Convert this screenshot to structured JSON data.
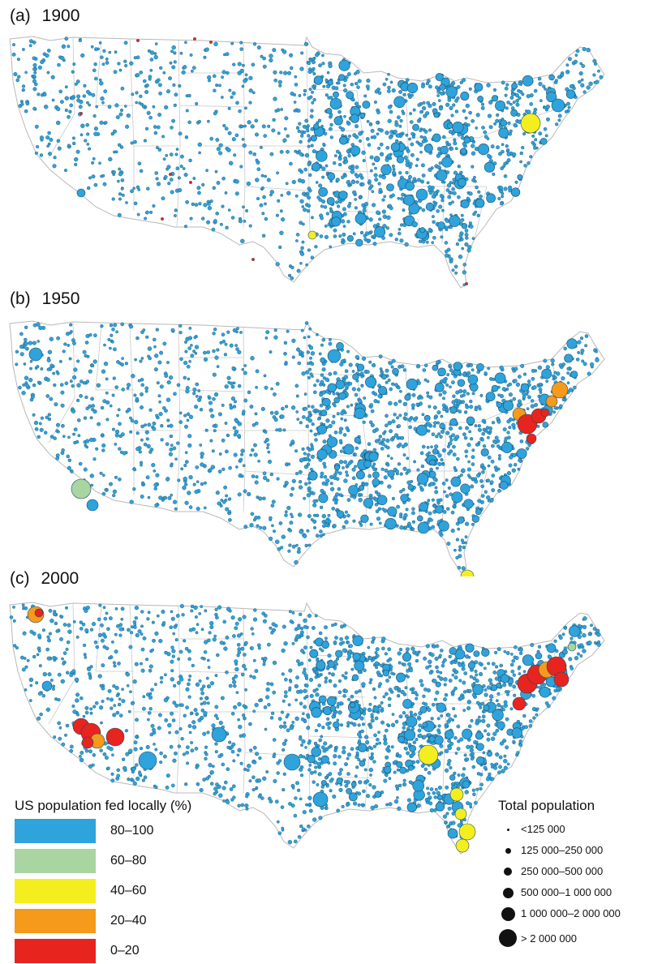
{
  "panels": [
    {
      "label": "(a)",
      "year": "1900"
    },
    {
      "label": "(b)",
      "year": "1950"
    },
    {
      "label": "(c)",
      "year": "2000"
    }
  ],
  "colors": {
    "c80_100": "#2ea3dc",
    "c60_80": "#a8d5a0",
    "c40_60": "#f5ee1e",
    "c20_40": "#f59a1b",
    "c0_20": "#e8241f",
    "border": "#b8b8b8",
    "dot_outline": "#1d4d66"
  },
  "legend_color": {
    "title": "US population fed locally (%)",
    "items": [
      {
        "label": "80–100",
        "color": "#2ea3dc"
      },
      {
        "label": "60–80",
        "color": "#a8d5a0"
      },
      {
        "label": "40–60",
        "color": "#f5ee1e"
      },
      {
        "label": "20–40",
        "color": "#f59a1b"
      },
      {
        "label": "0–20",
        "color": "#e8241f"
      }
    ]
  },
  "legend_size": {
    "title": "Total population",
    "items": [
      {
        "label": "<125 000"
      },
      {
        "label": "125 000–250 000"
      },
      {
        "label": "250 000–500 000"
      },
      {
        "label": "500 000–1 000 000"
      },
      {
        "label": "1 000 000–2 000 000"
      },
      {
        "label": "> 2 000 000"
      }
    ]
  }
}
